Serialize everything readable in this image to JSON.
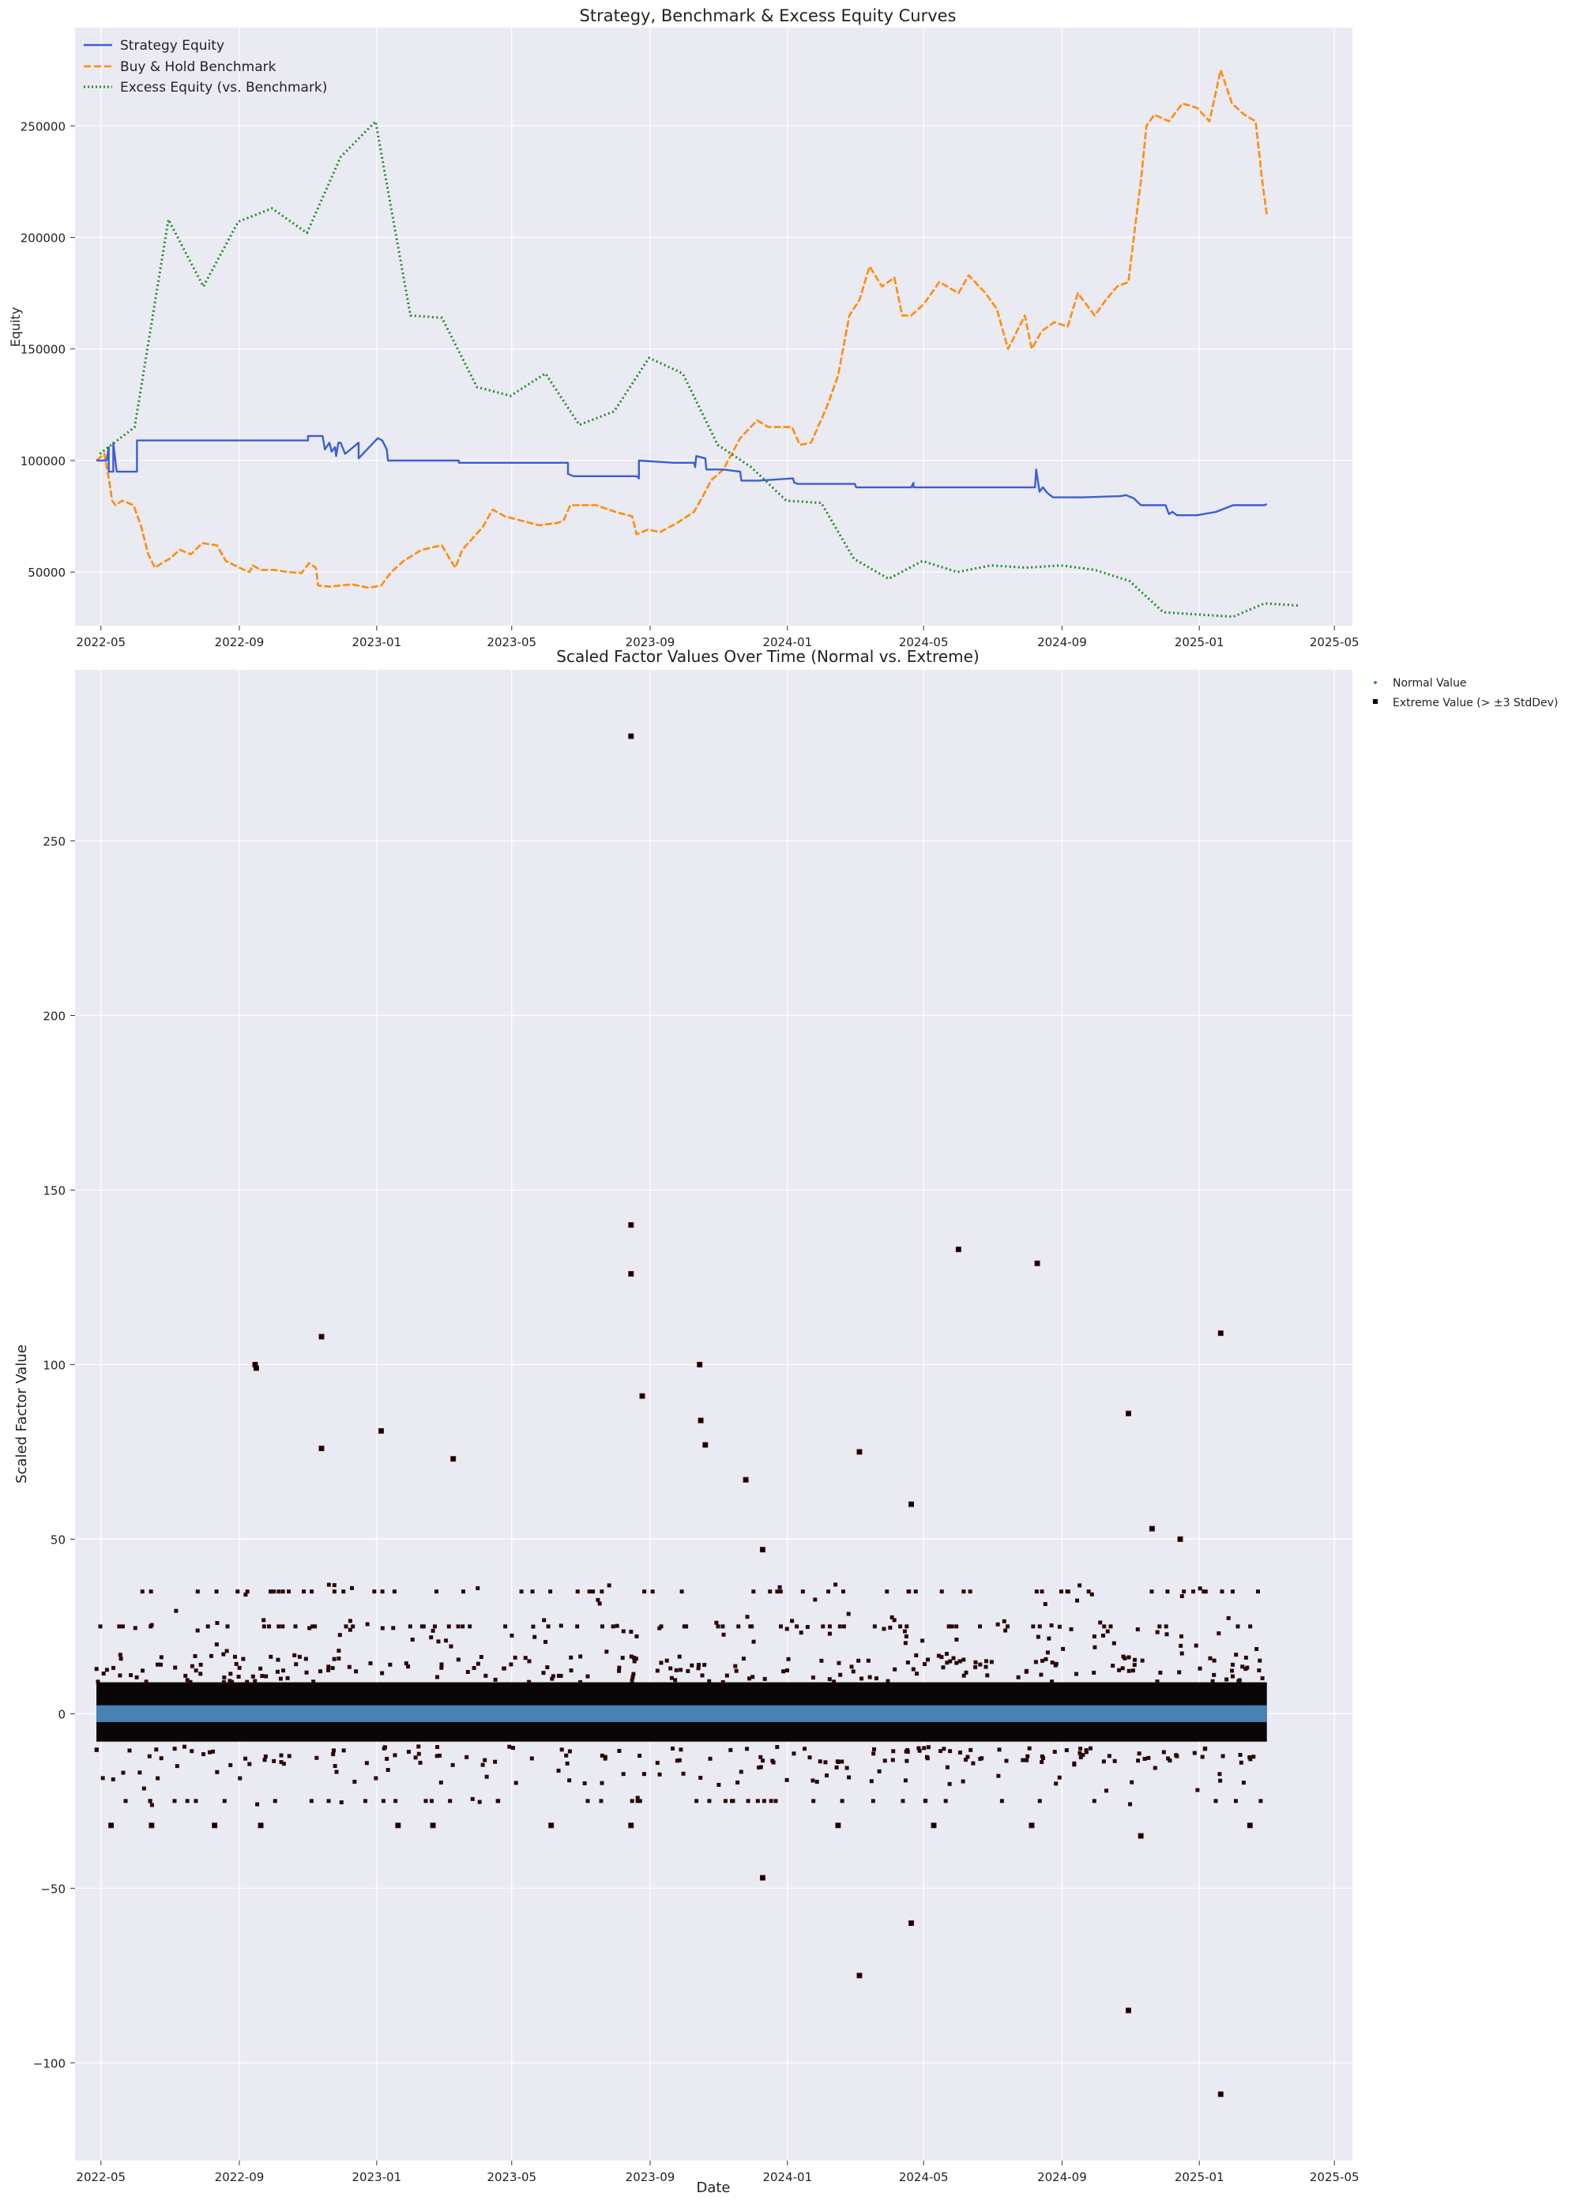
{
  "chart_data": [
    {
      "type": "line",
      "title": "Strategy, Benchmark & Excess Equity Curves",
      "xlabel": "",
      "ylabel": "Equity",
      "x_ticks": [
        "2022-05",
        "2022-09",
        "2023-01",
        "2023-05",
        "2023-09",
        "2024-01",
        "2024-05",
        "2024-09",
        "2025-01",
        "2025-05"
      ],
      "y_ticks": [
        "50000",
        "100000",
        "150000",
        "200000",
        "250000"
      ],
      "xlim": [
        "2022-04-08",
        "2025-05-17"
      ],
      "ylim": [
        26000,
        294000
      ],
      "grid": true,
      "legend_position": "top-left",
      "colors": {
        "strategy": "#3a5fd4",
        "benchmark": "#ff8c0a",
        "excess": "#1f8a1f",
        "plot_bg": "#eaeaf2"
      },
      "series": [
        {
          "name": "Strategy Equity",
          "style": "solid",
          "x": [
            "2022-04-27",
            "2022-05-06",
            "2022-05-08",
            "2022-05-08",
            "2022-05-10",
            "2022-05-12",
            "2022-05-12",
            "2022-05-15",
            "2022-05-31",
            "2022-06-02",
            "2022-06-02",
            "2022-11-01",
            "2022-11-01",
            "2022-11-14",
            "2022-11-16",
            "2022-11-20",
            "2022-11-22",
            "2022-11-25",
            "2022-11-26",
            "2022-11-28",
            "2022-11-30",
            "2022-12-04",
            "2022-12-16",
            "2022-12-16",
            "2023-01-02",
            "2023-01-06",
            "2023-01-10",
            "2023-01-11",
            "2023-03-15",
            "2023-03-15",
            "2023-04-20",
            "2023-06-20",
            "2023-06-20",
            "2023-06-25",
            "2023-08-20",
            "2023-08-22",
            "2023-08-22",
            "2023-09-22",
            "2023-10-10",
            "2023-10-11",
            "2023-10-12",
            "2023-10-20",
            "2023-10-21",
            "2023-11-05",
            "2023-11-20",
            "2023-11-21",
            "2023-12-06",
            "2024-01-06",
            "2024-01-07",
            "2024-01-08",
            "2024-01-10",
            "2024-02-20",
            "2024-03-01",
            "2024-03-02",
            "2024-04-20",
            "2024-04-22",
            "2024-04-22",
            "2024-07-23",
            "2024-08-08",
            "2024-08-09",
            "2024-08-12",
            "2024-08-15",
            "2024-08-18",
            "2024-08-20",
            "2024-08-24",
            "2024-09-20",
            "2024-10-19",
            "2024-10-22",
            "2024-10-28",
            "2024-11-04",
            "2024-11-10",
            "2024-12-02",
            "2024-12-05",
            "2024-12-08",
            "2024-12-12",
            "2024-12-20",
            "2024-12-30",
            "2025-01-16",
            "2025-01-31",
            "2025-02-08",
            "2025-02-20",
            "2025-02-28",
            "2025-03-02"
          ],
          "y": [
            100000,
            100000,
            106000,
            95000,
            95000,
            95000,
            108000,
            95000,
            95000,
            95000,
            109000,
            109000,
            111000,
            111000,
            105000,
            108000,
            104000,
            106000,
            102000,
            108000,
            108000,
            103000,
            108000,
            101000,
            110000,
            109000,
            105000,
            100000,
            100000,
            99000,
            99000,
            99000,
            94000,
            93000,
            93000,
            92000,
            100000,
            99000,
            99000,
            97000,
            102000,
            101000,
            96000,
            96000,
            95000,
            91000,
            91000,
            92000,
            90000,
            90000,
            89500,
            89500,
            89500,
            88000,
            88000,
            90000,
            88000,
            88000,
            88000,
            96000,
            86000,
            88000,
            86000,
            85000,
            83500,
            83500,
            84000,
            84000,
            84500,
            83000,
            80000,
            80000,
            76000,
            77000,
            75500,
            75500,
            75500,
            77000,
            80000,
            80000,
            80000,
            80000,
            80500
          ]
        },
        {
          "name": "Buy & Hold Benchmark",
          "style": "dashed",
          "x": [
            "2022-04-27",
            "2022-05-04",
            "2022-05-08",
            "2022-05-11",
            "2022-05-14",
            "2022-05-20",
            "2022-05-30",
            "2022-06-06",
            "2022-06-12",
            "2022-06-18",
            "2022-06-24",
            "2022-07-01",
            "2022-07-10",
            "2022-07-20",
            "2022-07-30",
            "2022-08-12",
            "2022-08-20",
            "2022-09-01",
            "2022-09-10",
            "2022-09-13",
            "2022-09-20",
            "2022-10-01",
            "2022-10-15",
            "2022-10-26",
            "2022-11-02",
            "2022-11-08",
            "2022-11-10",
            "2022-11-20",
            "2022-12-10",
            "2022-12-25",
            "2023-01-05",
            "2023-01-14",
            "2023-01-25",
            "2023-02-10",
            "2023-02-28",
            "2023-03-08",
            "2023-03-12",
            "2023-03-18",
            "2023-04-05",
            "2023-04-14",
            "2023-04-25",
            "2023-05-10",
            "2023-05-25",
            "2023-06-10",
            "2023-06-16",
            "2023-06-22",
            "2023-07-15",
            "2023-08-01",
            "2023-08-16",
            "2023-08-20",
            "2023-08-30",
            "2023-09-10",
            "2023-09-25",
            "2023-10-10",
            "2023-10-20",
            "2023-10-25",
            "2023-11-05",
            "2023-11-20",
            "2023-12-05",
            "2023-12-15",
            "2024-01-05",
            "2024-01-12",
            "2024-01-22",
            "2024-02-05",
            "2024-02-15",
            "2024-02-25",
            "2024-03-05",
            "2024-03-14",
            "2024-03-25",
            "2024-04-05",
            "2024-04-12",
            "2024-04-20",
            "2024-05-01",
            "2024-05-15",
            "2024-06-01",
            "2024-06-10",
            "2024-06-25",
            "2024-07-05",
            "2024-07-15",
            "2024-07-30",
            "2024-08-05",
            "2024-08-14",
            "2024-08-25",
            "2024-09-06",
            "2024-09-15",
            "2024-09-30",
            "2024-10-10",
            "2024-10-20",
            "2024-10-30",
            "2024-11-05",
            "2024-11-10",
            "2024-11-15",
            "2024-11-22",
            "2024-12-05",
            "2024-12-17",
            "2024-12-30",
            "2025-01-10",
            "2025-01-20",
            "2025-01-30",
            "2025-02-10",
            "2025-02-20",
            "2025-02-26",
            "2025-03-02"
          ],
          "y": [
            100000,
            103000,
            92000,
            82000,
            80000,
            82000,
            80000,
            70000,
            58000,
            52000,
            54000,
            56000,
            60000,
            58000,
            63000,
            62000,
            55000,
            52000,
            50000,
            53000,
            51000,
            51000,
            50000,
            49500,
            54000,
            52000,
            44000,
            43500,
            44500,
            43000,
            44000,
            50000,
            55000,
            60000,
            62000,
            55000,
            52000,
            60000,
            70000,
            78000,
            75000,
            73000,
            71000,
            72000,
            73000,
            80000,
            80000,
            77000,
            75000,
            67000,
            69000,
            68000,
            72000,
            77000,
            86000,
            91000,
            96000,
            110000,
            118000,
            115000,
            115000,
            107000,
            108000,
            124000,
            138000,
            165000,
            172000,
            187000,
            178000,
            182000,
            165000,
            165000,
            170000,
            180000,
            175000,
            183000,
            175000,
            168000,
            150000,
            165000,
            150000,
            158000,
            162000,
            160000,
            175000,
            165000,
            172000,
            178000,
            180000,
            205000,
            225000,
            250000,
            255000,
            252000,
            260000,
            258000,
            252000,
            275000,
            260000,
            255000,
            252000,
            225000,
            210000
          ]
        },
        {
          "name": "Excess Equity (vs. Benchmark)",
          "style": "dotted",
          "x": [
            "2022-04-30",
            "2022-05-31",
            "2022-06-30",
            "2022-07-31",
            "2022-08-31",
            "2022-09-30",
            "2022-10-31",
            "2022-11-30",
            "2022-12-31",
            "2023-01-31",
            "2023-02-28",
            "2023-03-31",
            "2023-04-30",
            "2023-05-31",
            "2023-06-30",
            "2023-07-31",
            "2023-08-31",
            "2023-09-30",
            "2023-10-31",
            "2023-11-30",
            "2023-12-31",
            "2024-01-31",
            "2024-02-29",
            "2024-03-31",
            "2024-04-30",
            "2024-05-31",
            "2024-06-30",
            "2024-07-31",
            "2024-08-31",
            "2024-09-30",
            "2024-10-31",
            "2024-11-30",
            "2024-12-31",
            "2025-01-31",
            "2025-02-28",
            "2025-03-31"
          ],
          "y": [
            103000,
            115000,
            208000,
            178000,
            207000,
            213000,
            202000,
            236000,
            252000,
            165000,
            164000,
            133000,
            129000,
            139000,
            116000,
            122000,
            146000,
            139000,
            107000,
            97000,
            82000,
            81000,
            56000,
            47000,
            55000,
            50000,
            53000,
            52000,
            53000,
            51000,
            46000,
            32000,
            31000,
            30000,
            36000,
            35000
          ]
        }
      ]
    },
    {
      "type": "scatter",
      "title": "Scaled Factor Values Over Time (Normal vs. Extreme)",
      "xlabel": "Date",
      "ylabel": "Scaled Factor Value",
      "x_ticks": [
        "2022-05",
        "2022-09",
        "2023-01",
        "2023-05",
        "2023-09",
        "2024-01",
        "2024-05",
        "2024-09",
        "2025-01",
        "2025-05"
      ],
      "y_ticks": [
        "−100",
        "−50",
        "0",
        "50",
        "100",
        "150",
        "200",
        "250"
      ],
      "xlim": [
        "2022-04-08",
        "2025-05-17"
      ],
      "ylim": [
        -128,
        299
      ],
      "grid": true,
      "legend_position": "outside-top-right",
      "colors": {
        "normal": "#4682b4",
        "extreme": "#000000",
        "extreme_edge": "#5a0a0a",
        "plot_bg": "#eaeaf2"
      },
      "band": {
        "normal_range": [
          -2.4,
          2.4
        ],
        "extreme_core_range": [
          -8,
          9
        ],
        "x_start": "2022-04-27",
        "x_end": "2025-03-02"
      },
      "series": [
        {
          "name": "Normal Value",
          "points": "dense band of values between about -2.4 and 2.4 on every date"
        },
        {
          "name": "Extreme Value (> ±3 StdDev)",
          "x": [
            "2023-08-15",
            "2023-08-15",
            "2023-08-15",
            "2024-06-01",
            "2024-08-10",
            "2025-01-20",
            "2022-11-13",
            "2022-09-15",
            "2022-09-16",
            "2023-10-15",
            "2023-08-25",
            "2023-10-16",
            "2022-11-13",
            "2023-01-05",
            "2023-03-10",
            "2023-10-20",
            "2023-11-25",
            "2024-03-05",
            "2024-04-20",
            "2024-10-30",
            "2024-11-20",
            "2024-12-15",
            "2023-12-10",
            "2023-12-10",
            "2024-03-05",
            "2024-04-20",
            "2024-10-30",
            "2025-01-20",
            "2022-05-10",
            "2022-06-15",
            "2022-08-10",
            "2022-09-20",
            "2023-01-20",
            "2023-02-20",
            "2023-06-05",
            "2023-08-15",
            "2024-02-15",
            "2024-05-10",
            "2024-08-05",
            "2024-11-10",
            "2025-02-15"
          ],
          "y": [
            280,
            140,
            126,
            133,
            129,
            109,
            108,
            100,
            99,
            100,
            91,
            84,
            76,
            81,
            73,
            77,
            67,
            75,
            60,
            86,
            53,
            50,
            47,
            -47,
            -75,
            -60,
            -85,
            -109,
            -32,
            -32,
            -32,
            -32,
            -32,
            -32,
            -32,
            -32,
            -32,
            -32,
            -32,
            -35,
            -32
          ]
        }
      ]
    }
  ]
}
